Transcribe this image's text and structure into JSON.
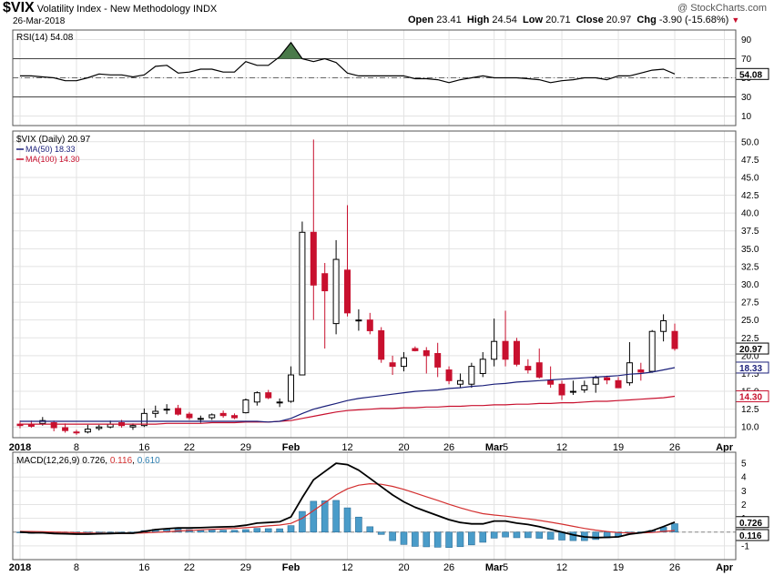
{
  "header": {
    "ticker": "$VIX",
    "name": "Volatility Index - New Methodology",
    "exchange": "INDX",
    "date": "26-Mar-2018",
    "watermark": "@ StockCharts.com",
    "quote": {
      "open_label": "Open",
      "open": "23.41",
      "high_label": "High",
      "high": "24.54",
      "low_label": "Low",
      "low": "20.71",
      "close_label": "Close",
      "close": "20.97",
      "chg_label": "Chg",
      "chg": "-3.90 (-15.68%)"
    }
  },
  "colors": {
    "up": "#ffffff",
    "down": "#c8102e",
    "ma50": "#1a1f7a",
    "ma100": "#c8102e",
    "rsi": "#000000",
    "rsi_fill": "#4a7a4a",
    "macd": "#000000",
    "signal": "#d32f2f",
    "hist": "#4a9cc9",
    "grid": "#e3e3e3"
  },
  "x_axis": {
    "labels": [
      {
        "i": 0,
        "text": "2018",
        "bold": true
      },
      {
        "i": 5,
        "text": "8"
      },
      {
        "i": 11,
        "text": "16"
      },
      {
        "i": 15,
        "text": "22"
      },
      {
        "i": 20,
        "text": "29"
      },
      {
        "i": 24,
        "text": "Feb",
        "bold": true
      },
      {
        "i": 29,
        "text": "12"
      },
      {
        "i": 34,
        "text": "20"
      },
      {
        "i": 38,
        "text": "26"
      },
      {
        "i": 42,
        "text": "Mar",
        "bold": true
      },
      {
        "i": 43,
        "text": "5"
      },
      {
        "i": 48,
        "text": "12"
      },
      {
        "i": 53,
        "text": "19"
      },
      {
        "i": 58,
        "text": "26"
      },
      {
        "i": 62.4,
        "text": "Apr",
        "bold": true
      }
    ]
  },
  "chart_data": [
    {
      "type": "line",
      "name": "rsi-panel",
      "legend": "RSI(14) 54.08",
      "ylim": [
        0,
        100
      ],
      "ticks": [
        10,
        30,
        50,
        70,
        90
      ],
      "overbought": 70,
      "oversold": 30,
      "midline": 50,
      "last_value_label": "54.08",
      "values": [
        52,
        52,
        51,
        50,
        47,
        47,
        50,
        54,
        53,
        53,
        51,
        53,
        62,
        63,
        55,
        56,
        59,
        59,
        56,
        56,
        67,
        63,
        63,
        72,
        87,
        70,
        67,
        70,
        66,
        55,
        52,
        52,
        52,
        52,
        52,
        49,
        49,
        48,
        45,
        48,
        50,
        52,
        50,
        50,
        50,
        49,
        48,
        45,
        47,
        48,
        50,
        50,
        48,
        52,
        52,
        55,
        58,
        59,
        54
      ]
    },
    {
      "type": "candlestick",
      "name": "price-panel",
      "legend": "$VIX (Daily) 20.97",
      "ylim": [
        8.5,
        51.5
      ],
      "ticks": [
        10.0,
        12.5,
        15.0,
        17.5,
        20.0,
        22.5,
        25.0,
        27.5,
        30.0,
        32.5,
        35.0,
        37.5,
        40.0,
        42.5,
        45.0,
        47.5,
        50.0
      ],
      "last_close_label": "20.97",
      "ohlc": [
        [
          10.4,
          10.9,
          9.8,
          10.2
        ],
        [
          10.3,
          10.9,
          9.9,
          10.1
        ],
        [
          10.5,
          11.4,
          10.2,
          10.9
        ],
        [
          10.6,
          10.9,
          9.4,
          9.9
        ],
        [
          9.9,
          10.5,
          9.2,
          9.5
        ],
        [
          9.3,
          9.6,
          8.9,
          9.2
        ],
        [
          9.3,
          10.3,
          9.1,
          9.7
        ],
        [
          9.8,
          10.3,
          9.5,
          10.0
        ],
        [
          10.0,
          10.9,
          9.8,
          10.4
        ],
        [
          10.6,
          11.0,
          9.9,
          10.2
        ],
        [
          10.0,
          10.5,
          9.6,
          10.2
        ],
        [
          10.2,
          12.6,
          10.0,
          11.9
        ],
        [
          11.9,
          13.0,
          11.3,
          12.2
        ],
        [
          12.5,
          13.2,
          11.8,
          12.5
        ],
        [
          12.6,
          13.1,
          11.6,
          11.8
        ],
        [
          11.8,
          12.1,
          11.0,
          11.3
        ],
        [
          11.1,
          11.6,
          10.6,
          11.2
        ],
        [
          11.3,
          11.9,
          11.0,
          11.7
        ],
        [
          11.9,
          12.3,
          11.3,
          11.6
        ],
        [
          11.6,
          11.9,
          11.1,
          11.3
        ],
        [
          12.0,
          14.0,
          11.9,
          13.8
        ],
        [
          13.5,
          15.0,
          13.0,
          14.8
        ],
        [
          14.8,
          15.2,
          13.9,
          14.1
        ],
        [
          13.5,
          14.0,
          12.8,
          13.5
        ],
        [
          13.6,
          18.5,
          13.4,
          17.3
        ],
        [
          17.3,
          38.8,
          17.3,
          37.3
        ],
        [
          37.3,
          50.3,
          25.0,
          29.9
        ],
        [
          31.5,
          33.0,
          21.0,
          29.1
        ],
        [
          24.5,
          36.2,
          23.0,
          33.5
        ],
        [
          32.0,
          41.1,
          25.5,
          26.0
        ],
        [
          25.0,
          26.5,
          23.5,
          25.0
        ],
        [
          25.0,
          26.0,
          23.0,
          23.5
        ],
        [
          23.5,
          24.0,
          19.0,
          19.5
        ],
        [
          19.0,
          20.0,
          17.3,
          18.5
        ],
        [
          18.5,
          20.5,
          17.8,
          19.7
        ],
        [
          21.0,
          21.3,
          20.6,
          20.7
        ],
        [
          20.7,
          21.2,
          17.5,
          20.0
        ],
        [
          20.3,
          21.8,
          17.0,
          18.4
        ],
        [
          18.0,
          18.5,
          16.0,
          16.5
        ],
        [
          16.0,
          17.5,
          15.5,
          16.5
        ],
        [
          16.0,
          19.0,
          15.5,
          18.5
        ],
        [
          17.5,
          20.5,
          17.0,
          19.5
        ],
        [
          19.5,
          25.2,
          18.5,
          22.0
        ],
        [
          22.0,
          26.3,
          18.5,
          19.5
        ],
        [
          22.0,
          22.5,
          18.5,
          18.8
        ],
        [
          18.5,
          19.5,
          17.5,
          18.0
        ],
        [
          19.0,
          21.0,
          16.8,
          17.0
        ],
        [
          16.5,
          18.5,
          15.5,
          16.0
        ],
        [
          16.0,
          16.5,
          13.8,
          14.5
        ],
        [
          15.0,
          16.5,
          14.5,
          15.0
        ],
        [
          15.2,
          16.5,
          14.8,
          15.8
        ],
        [
          16.0,
          17.2,
          14.8,
          16.9
        ],
        [
          16.9,
          17.2,
          16.0,
          16.6
        ],
        [
          16.5,
          17.0,
          15.5,
          15.5
        ],
        [
          16.2,
          21.9,
          15.8,
          19.0
        ],
        [
          18.0,
          19.0,
          16.5,
          17.7
        ],
        [
          17.8,
          23.6,
          17.6,
          23.4
        ],
        [
          23.4,
          25.8,
          22.0,
          24.9
        ],
        [
          23.4,
          24.5,
          20.7,
          21.0
        ]
      ],
      "series": [
        {
          "name": "MA(50) 18.33",
          "values": [
            10.8,
            10.8,
            10.8,
            10.8,
            10.8,
            10.8,
            10.8,
            10.8,
            10.8,
            10.8,
            10.8,
            10.8,
            10.8,
            10.8,
            10.8,
            10.8,
            10.8,
            10.8,
            10.8,
            10.8,
            10.8,
            10.8,
            10.7,
            10.8,
            11.2,
            11.9,
            12.5,
            12.9,
            13.3,
            13.7,
            14.0,
            14.2,
            14.4,
            14.6,
            14.8,
            15.0,
            15.1,
            15.2,
            15.4,
            15.5,
            15.7,
            15.8,
            16.0,
            16.1,
            16.3,
            16.4,
            16.5,
            16.6,
            16.7,
            16.8,
            16.9,
            17.0,
            17.1,
            17.2,
            17.4,
            17.5,
            17.7,
            18.0,
            18.33
          ],
          "last_value_label": "18.33"
        },
        {
          "name": "MA(100) 14.30",
          "values": [
            10.4,
            10.4,
            10.4,
            10.4,
            10.4,
            10.4,
            10.4,
            10.4,
            10.4,
            10.4,
            10.4,
            10.4,
            10.4,
            10.5,
            10.5,
            10.5,
            10.5,
            10.6,
            10.6,
            10.6,
            10.7,
            10.7,
            10.7,
            10.8,
            10.9,
            11.2,
            11.5,
            11.8,
            12.1,
            12.3,
            12.4,
            12.5,
            12.6,
            12.6,
            12.7,
            12.7,
            12.8,
            12.8,
            12.9,
            12.9,
            13.0,
            13.0,
            13.1,
            13.1,
            13.2,
            13.2,
            13.3,
            13.3,
            13.4,
            13.4,
            13.5,
            13.6,
            13.6,
            13.7,
            13.8,
            13.9,
            14.0,
            14.1,
            14.3
          ],
          "last_value_label": "14.30"
        }
      ]
    },
    {
      "type": "line",
      "name": "macd-panel",
      "legend": {
        "label": "MACD(12,26,9)",
        "macd": "0.726",
        "signal": "0.116",
        "hist": "0.610"
      },
      "ylim": [
        -2.0,
        5.8
      ],
      "ticks": [
        -1,
        0,
        1,
        2,
        3,
        4,
        5
      ],
      "series": [
        {
          "name": "MACD",
          "values": [
            0,
            -0.05,
            -0.05,
            -0.1,
            -0.12,
            -0.15,
            -0.15,
            -0.12,
            -0.1,
            -0.08,
            -0.08,
            0.05,
            0.18,
            0.25,
            0.3,
            0.3,
            0.32,
            0.35,
            0.38,
            0.4,
            0.5,
            0.65,
            0.7,
            0.75,
            1.1,
            2.5,
            3.8,
            4.4,
            5.0,
            4.9,
            4.5,
            3.9,
            3.3,
            2.7,
            2.2,
            1.8,
            1.5,
            1.2,
            0.9,
            0.7,
            0.6,
            0.6,
            0.8,
            0.8,
            0.65,
            0.55,
            0.4,
            0.2,
            0.0,
            -0.2,
            -0.35,
            -0.4,
            -0.38,
            -0.35,
            -0.15,
            -0.05,
            0.1,
            0.4,
            0.726
          ],
          "last_value_label": "0.726"
        },
        {
          "name": "Signal",
          "values": [
            0.05,
            0.04,
            0.02,
            0,
            -0.02,
            -0.05,
            -0.07,
            -0.08,
            -0.08,
            -0.08,
            -0.08,
            -0.06,
            -0.02,
            0.02,
            0.08,
            0.12,
            0.16,
            0.2,
            0.24,
            0.27,
            0.32,
            0.38,
            0.45,
            0.51,
            0.63,
            1.0,
            1.56,
            2.13,
            2.7,
            3.14,
            3.41,
            3.51,
            3.47,
            3.32,
            3.1,
            2.84,
            2.57,
            2.3,
            2.02,
            1.76,
            1.53,
            1.34,
            1.24,
            1.16,
            1.06,
            0.96,
            0.85,
            0.72,
            0.58,
            0.42,
            0.27,
            0.14,
            0.04,
            -0.04,
            -0.06,
            -0.06,
            -0.03,
            0.05,
            0.116
          ],
          "last_value_label": "0.116"
        },
        {
          "name": "Histogram",
          "values": [
            -0.05,
            -0.09,
            -0.07,
            -0.1,
            -0.1,
            -0.1,
            -0.08,
            -0.04,
            -0.02,
            0,
            0,
            0.11,
            0.2,
            0.23,
            0.22,
            0.18,
            0.16,
            0.15,
            0.14,
            0.13,
            0.18,
            0.27,
            0.25,
            0.24,
            0.47,
            1.5,
            2.24,
            2.27,
            2.3,
            1.76,
            1.09,
            0.39,
            -0.17,
            -0.62,
            -0.9,
            -1.04,
            -1.07,
            -1.1,
            -1.12,
            -1.06,
            -0.93,
            -0.74,
            -0.44,
            -0.36,
            -0.41,
            -0.41,
            -0.45,
            -0.52,
            -0.58,
            -0.62,
            -0.62,
            -0.54,
            -0.42,
            -0.31,
            -0.09,
            0.01,
            0.13,
            0.35,
            0.61
          ]
        }
      ]
    }
  ]
}
